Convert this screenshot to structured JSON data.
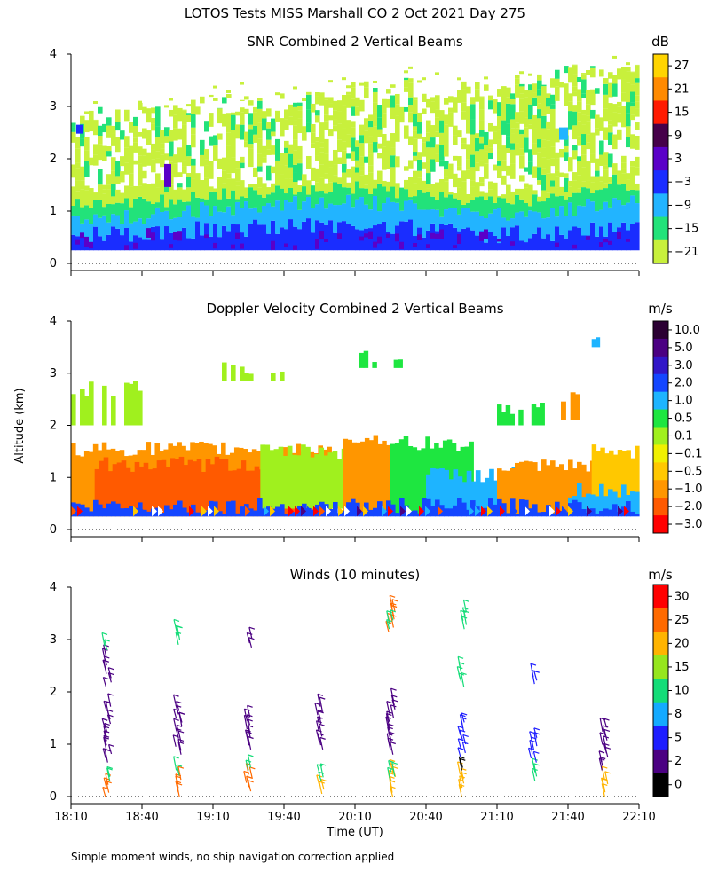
{
  "figure": {
    "title": "LOTOS Tests MISS Marshall CO    2 Oct 2021 Day 275",
    "footnote": "Simple moment winds, no ship navigation correction applied",
    "ylabel": "Altitude (km)",
    "xlabel": "Time (UT)"
  },
  "chart_data": [
    {
      "type": "heatmap",
      "title": "SNR Combined 2 Vertical Beams",
      "colorbar_unit": "dB",
      "colorbar_labels": [
        "27",
        "21",
        "15",
        "9",
        "3",
        "−3",
        "−9",
        "−15",
        "−21"
      ],
      "colorbar_colors": [
        "#ffd400",
        "#ff8a00",
        "#ff1a00",
        "#46004a",
        "#5a00c8",
        "#1a2dff",
        "#22b4ff",
        "#22e27a",
        "#c8f03c"
      ],
      "y_ticks": [
        "0",
        "1",
        "2",
        "3",
        "4"
      ],
      "ylim": [
        0,
        4
      ],
      "profiles": [
        {
          "t": "18:10",
          "base": 0.25,
          "blue": 0.55,
          "cyan": 0.9,
          "green": 1.2,
          "yg": 1.45,
          "top": 2.7
        },
        {
          "t": "18:30",
          "base": 0.25,
          "blue": 0.55,
          "cyan": 0.85,
          "green": 1.15,
          "yg": 1.4,
          "top": 2.9
        },
        {
          "t": "18:50",
          "base": 0.25,
          "blue": 0.6,
          "cyan": 0.95,
          "green": 1.2,
          "yg": 1.45,
          "top": 2.95
        },
        {
          "t": "19:10",
          "base": 0.25,
          "blue": 0.65,
          "cyan": 1.05,
          "green": 1.3,
          "yg": 1.55,
          "top": 3.05
        },
        {
          "t": "19:30",
          "base": 0.25,
          "blue": 0.7,
          "cyan": 1.1,
          "green": 1.35,
          "yg": 1.55,
          "top": 3.1
        },
        {
          "t": "19:50",
          "base": 0.25,
          "blue": 0.75,
          "cyan": 1.15,
          "green": 1.4,
          "yg": 1.6,
          "top": 3.1
        },
        {
          "t": "20:10",
          "base": 0.25,
          "blue": 0.75,
          "cyan": 1.2,
          "green": 1.45,
          "yg": 1.65,
          "top": 3.3
        },
        {
          "t": "20:30",
          "base": 0.25,
          "blue": 0.7,
          "cyan": 1.1,
          "green": 1.35,
          "yg": 1.55,
          "top": 3.35
        },
        {
          "t": "20:50",
          "base": 0.25,
          "blue": 0.6,
          "cyan": 1.0,
          "green": 1.25,
          "yg": 1.45,
          "top": 3.35
        },
        {
          "t": "21:10",
          "base": 0.25,
          "blue": 0.55,
          "cyan": 0.95,
          "green": 1.2,
          "yg": 1.4,
          "top": 3.4
        },
        {
          "t": "21:30",
          "base": 0.25,
          "blue": 0.55,
          "cyan": 0.95,
          "green": 1.2,
          "yg": 1.4,
          "top": 3.55
        },
        {
          "t": "21:50",
          "base": 0.25,
          "blue": 0.65,
          "cyan": 1.1,
          "green": 1.4,
          "yg": 1.6,
          "top": 3.75
        },
        {
          "t": "22:10",
          "base": 0.25,
          "blue": 0.75,
          "cyan": 1.2,
          "green": 1.5,
          "yg": 1.65,
          "top": 3.7
        }
      ]
    },
    {
      "type": "heatmap",
      "title": "Doppler Velocity Combined 2 Vertical Beams",
      "colorbar_unit": "m/s",
      "colorbar_labels": [
        "10.0",
        "5.0",
        "3.0",
        "2.0",
        "1.0",
        "0.5",
        "0.1",
        "−0.1",
        "−0.5",
        "−1.0",
        "−2.0",
        "−3.0"
      ],
      "colorbar_colors": [
        "#2b0033",
        "#4b0082",
        "#3216c8",
        "#1446ff",
        "#1eb4ff",
        "#1ee640",
        "#a0f01e",
        "#f0f000",
        "#ffc800",
        "#ff9600",
        "#ff5a00",
        "#ff0000"
      ],
      "y_ticks": [
        "0",
        "1",
        "2",
        "3",
        "4"
      ],
      "ylim": [
        0,
        4
      ],
      "blocks": [
        {
          "t0": "18:10",
          "t1": "20:00",
          "h0": 0.25,
          "h1": 1.55,
          "color": "#ff9600"
        },
        {
          "t0": "18:20",
          "t1": "19:50",
          "h0": 0.3,
          "h1": 1.25,
          "color": "#ff5a00"
        },
        {
          "t0": "19:30",
          "t1": "20:10",
          "h0": 0.4,
          "h1": 1.5,
          "color": "#a0f01e"
        },
        {
          "t0": "20:05",
          "t1": "20:25",
          "h0": 0.3,
          "h1": 1.75,
          "color": "#ff9600"
        },
        {
          "t0": "20:25",
          "t1": "21:00",
          "h0": 0.3,
          "h1": 1.65,
          "color": "#1ee640"
        },
        {
          "t0": "20:40",
          "t1": "21:20",
          "h0": 0.3,
          "h1": 1.05,
          "color": "#1eb4ff"
        },
        {
          "t0": "21:10",
          "t1": "21:55",
          "h0": 0.3,
          "h1": 1.2,
          "color": "#ff9600"
        },
        {
          "t0": "21:50",
          "t1": "22:10",
          "h0": 0.3,
          "h1": 1.5,
          "color": "#ffc800"
        },
        {
          "t0": "21:40",
          "t1": "22:10",
          "h0": 0.3,
          "h1": 0.75,
          "color": "#1eb4ff"
        },
        {
          "t0": "18:10",
          "t1": "22:10",
          "h0": 0.25,
          "h1": 0.45,
          "color": "#1446ff"
        },
        {
          "t0": "18:10",
          "t1": "18:40",
          "h0": 2.0,
          "h1": 2.7,
          "color": "#a0f01e"
        },
        {
          "t0": "19:10",
          "t1": "19:40",
          "h0": 2.85,
          "h1": 3.1,
          "color": "#a0f01e"
        },
        {
          "t0": "20:10",
          "t1": "20:30",
          "h0": 3.1,
          "h1": 3.3,
          "color": "#1ee640"
        },
        {
          "t0": "21:10",
          "t1": "21:30",
          "h0": 2.0,
          "h1": 2.3,
          "color": "#1ee640"
        },
        {
          "t0": "21:35",
          "t1": "21:45",
          "h0": 2.1,
          "h1": 2.5,
          "color": "#ff9600"
        },
        {
          "t0": "21:50",
          "t1": "21:55",
          "h0": 3.5,
          "h1": 3.75,
          "color": "#1eb4ff"
        }
      ]
    },
    {
      "type": "wind-barbs",
      "title": "Winds (10 minutes)",
      "colorbar_unit": "m/s",
      "colorbar_labels": [
        "30",
        "25",
        "20",
        "15",
        "10",
        "8",
        "5",
        "2",
        "0"
      ],
      "colorbar_colors": [
        "#ff0000",
        "#ff6a00",
        "#ffb400",
        "#96e61e",
        "#14dc78",
        "#14aaff",
        "#1e1eff",
        "#4b0082",
        "#000000"
      ],
      "x_ticks": [
        "18:10",
        "18:40",
        "19:10",
        "19:40",
        "20:10",
        "20:40",
        "21:10",
        "21:40",
        "22:10"
      ],
      "y_ticks": [
        "0",
        "1",
        "2",
        "3",
        "4"
      ],
      "ylim": [
        0,
        4
      ],
      "profiles": [
        {
          "t": "18:25",
          "layers": [
            {
              "h0": 0.0,
              "h1": 0.3,
              "color": "#ff6a00"
            },
            {
              "h0": 0.3,
              "h1": 0.45,
              "color": "#14dc78"
            },
            {
              "h0": 0.65,
              "h1": 1.8,
              "color": "#4b0082"
            },
            {
              "h0": 2.1,
              "h1": 2.75,
              "color": "#4b0082"
            },
            {
              "h0": 2.8,
              "h1": 2.95,
              "color": "#14dc78"
            }
          ]
        },
        {
          "t": "18:55",
          "layers": [
            {
              "h0": 0.0,
              "h1": 0.4,
              "color": "#ff6a00"
            },
            {
              "h0": 0.4,
              "h1": 0.6,
              "color": "#14dc78"
            },
            {
              "h0": 0.8,
              "h1": 1.8,
              "color": "#4b0082"
            },
            {
              "h0": 2.9,
              "h1": 3.25,
              "color": "#14dc78"
            }
          ]
        },
        {
          "t": "19:25",
          "layers": [
            {
              "h0": 0.1,
              "h1": 0.5,
              "color": "#ff6a00"
            },
            {
              "h0": 0.5,
              "h1": 0.6,
              "color": "#14dc78"
            },
            {
              "h0": 0.9,
              "h1": 1.6,
              "color": "#4b0082"
            },
            {
              "h0": 2.85,
              "h1": 3.1,
              "color": "#4b0082"
            }
          ]
        },
        {
          "t": "19:55",
          "layers": [
            {
              "h0": 0.05,
              "h1": 0.3,
              "color": "#ffb400"
            },
            {
              "h0": 0.3,
              "h1": 0.5,
              "color": "#14dc78"
            },
            {
              "h0": 0.9,
              "h1": 1.8,
              "color": "#4b0082"
            }
          ]
        },
        {
          "t": "20:25",
          "layers": [
            {
              "h0": 0.0,
              "h1": 0.6,
              "color": "#ffb400"
            },
            {
              "h0": 0.3,
              "h1": 0.55,
              "color": "#14dc78"
            },
            {
              "h0": 0.8,
              "h1": 1.9,
              "color": "#4b0082"
            },
            {
              "h0": 3.15,
              "h1": 3.7,
              "color": "#ff6a00"
            },
            {
              "h0": 3.2,
              "h1": 3.45,
              "color": "#14dc78"
            }
          ]
        },
        {
          "t": "20:55",
          "layers": [
            {
              "h0": 0.0,
              "h1": 0.5,
              "color": "#ffb400"
            },
            {
              "h0": 0.5,
              "h1": 0.6,
              "color": "#000000"
            },
            {
              "h0": 0.75,
              "h1": 1.5,
              "color": "#1e1eff"
            },
            {
              "h0": 2.1,
              "h1": 2.5,
              "color": "#14dc78"
            },
            {
              "h0": 3.2,
              "h1": 3.6,
              "color": "#14dc78"
            }
          ]
        },
        {
          "t": "21:25",
          "layers": [
            {
              "h0": 0.3,
              "h1": 0.55,
              "color": "#14dc78"
            },
            {
              "h0": 0.65,
              "h1": 1.2,
              "color": "#1e1eff"
            },
            {
              "h0": 2.15,
              "h1": 2.35,
              "color": "#1e1eff"
            }
          ]
        },
        {
          "t": "21:55",
          "layers": [
            {
              "h0": 0.0,
              "h1": 0.4,
              "color": "#ffb400"
            },
            {
              "h0": 0.5,
              "h1": 1.4,
              "color": "#4b0082"
            }
          ]
        }
      ]
    }
  ]
}
